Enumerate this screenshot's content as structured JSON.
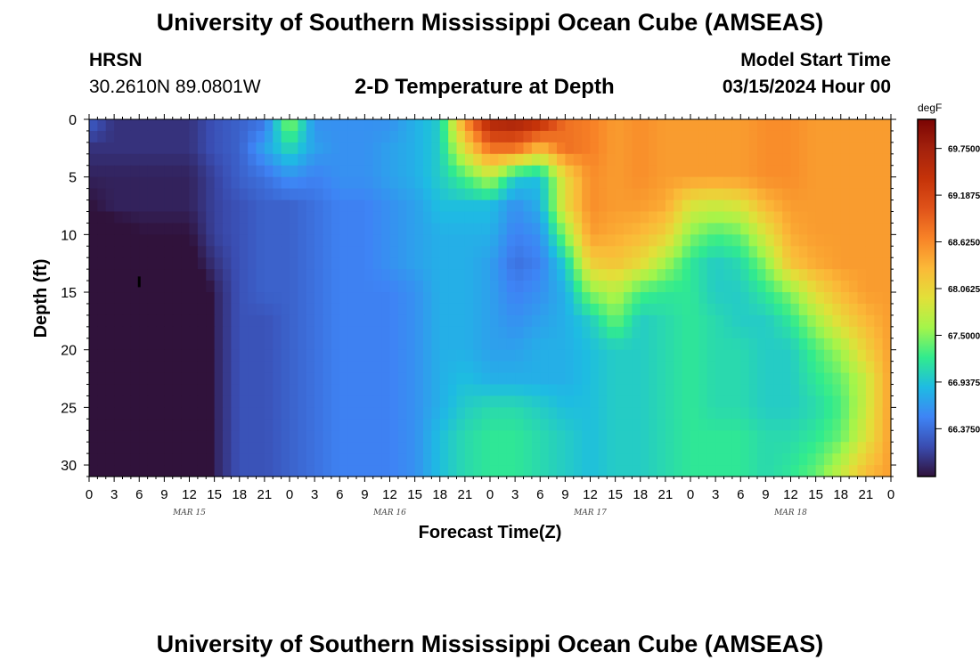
{
  "header": {
    "title": "University of Southern Mississippi Ocean Cube (AMSEAS)",
    "station": "HRSN",
    "coordinates": "30.2610N  89.0801W",
    "subtitle": "2-D Temperature at Depth",
    "model_start_label": "Model Start Time",
    "model_start_value": "03/15/2024 Hour 00"
  },
  "footer": {
    "title": "University of Southern Mississippi Ocean Cube (AMSEAS)"
  },
  "chart_data": {
    "type": "heatmap",
    "title": "2-D Temperature at Depth",
    "xlabel": "Forecast Time(Z)",
    "ylabel": "Depth (ft)",
    "x_hours": [
      0,
      3,
      6,
      9,
      12,
      15,
      18,
      21,
      24,
      27,
      30,
      33,
      36,
      39,
      42,
      45,
      48,
      51,
      54,
      57,
      60,
      63,
      66,
      69,
      72,
      75,
      78,
      81,
      84,
      87,
      90,
      93,
      96
    ],
    "x_tick_labels": [
      "0",
      "3",
      "6",
      "9",
      "12",
      "15",
      "18",
      "21",
      "0",
      "3",
      "6",
      "9",
      "12",
      "15",
      "18",
      "21",
      "0",
      "3",
      "6",
      "9",
      "12",
      "15",
      "18",
      "21",
      "0",
      "3",
      "6",
      "9",
      "12",
      "15",
      "18",
      "21",
      "0"
    ],
    "x_date_labels": [
      {
        "hour": 12,
        "label": "MAR 15"
      },
      {
        "hour": 36,
        "label": "MAR 16"
      },
      {
        "hour": 60,
        "label": "MAR 17"
      },
      {
        "hour": 84,
        "label": "MAR 18"
      }
    ],
    "xlim": [
      0,
      96
    ],
    "ylim": [
      0,
      31
    ],
    "y_reversed": true,
    "y_ticks": [
      0,
      5,
      10,
      15,
      20,
      25,
      30
    ],
    "y_tick_labels": [
      "0",
      "5",
      "10",
      "15",
      "20",
      "25",
      "30"
    ],
    "depths_ft": [
      0,
      2.5,
      5,
      7.5,
      10,
      12.5,
      15,
      17.5,
      20,
      22.5,
      25,
      27.5,
      31
    ],
    "values_degF": [
      [
        66.3,
        66.0,
        66.0,
        66.0,
        66.0,
        66.2,
        66.3,
        66.4,
        67.6,
        66.6,
        66.6,
        66.6,
        66.6,
        66.8,
        67.0,
        68.6,
        69.7,
        69.8,
        69.6,
        68.8,
        68.7,
        68.5,
        68.6,
        68.5,
        68.5,
        68.5,
        68.5,
        68.6,
        68.6,
        68.5,
        68.5,
        68.5,
        68.5
      ],
      [
        66.0,
        66.0,
        66.0,
        66.0,
        66.0,
        66.2,
        66.3,
        66.7,
        67.1,
        66.7,
        66.6,
        66.6,
        66.7,
        66.8,
        67.0,
        68.0,
        68.8,
        68.8,
        68.3,
        68.8,
        68.7,
        68.5,
        68.6,
        68.5,
        68.5,
        68.5,
        68.5,
        68.6,
        68.6,
        68.5,
        68.5,
        68.5,
        68.5
      ],
      [
        65.9,
        65.9,
        65.9,
        65.9,
        65.9,
        66.1,
        66.3,
        66.4,
        66.6,
        66.5,
        66.6,
        66.6,
        66.7,
        66.8,
        67.0,
        67.3,
        67.7,
        67.0,
        66.9,
        68.0,
        68.6,
        68.5,
        68.6,
        68.5,
        68.5,
        68.5,
        68.5,
        68.6,
        68.6,
        68.5,
        68.5,
        68.5,
        68.5
      ],
      [
        65.8,
        65.9,
        65.9,
        65.9,
        65.9,
        66.1,
        66.2,
        66.3,
        66.3,
        66.4,
        66.5,
        66.5,
        66.6,
        66.7,
        66.9,
        66.9,
        66.9,
        66.6,
        66.8,
        68.0,
        68.6,
        68.5,
        68.5,
        68.4,
        67.9,
        67.8,
        67.9,
        68.3,
        68.5,
        68.5,
        68.5,
        68.5,
        68.5
      ],
      [
        65.6,
        65.7,
        65.8,
        65.8,
        65.8,
        66.1,
        66.2,
        66.3,
        66.3,
        66.4,
        66.5,
        66.5,
        66.6,
        66.7,
        66.8,
        66.8,
        66.8,
        66.5,
        66.6,
        67.5,
        68.5,
        68.4,
        68.3,
        68.1,
        67.5,
        67.3,
        67.4,
        67.9,
        68.4,
        68.5,
        68.5,
        68.5,
        68.5
      ],
      [
        65.3,
        65.4,
        65.5,
        65.6,
        65.7,
        66.0,
        66.2,
        66.3,
        66.3,
        66.4,
        66.5,
        66.5,
        66.6,
        66.7,
        66.8,
        66.8,
        66.7,
        66.4,
        66.5,
        67.0,
        68.1,
        68.2,
        68.0,
        67.6,
        67.2,
        67.0,
        67.1,
        67.5,
        68.2,
        68.4,
        68.5,
        68.5,
        68.5
      ],
      [
        65.2,
        65.2,
        65.2,
        65.2,
        65.3,
        65.9,
        66.2,
        66.3,
        66.3,
        66.4,
        66.5,
        66.5,
        66.5,
        66.6,
        66.8,
        66.8,
        66.7,
        66.5,
        66.6,
        66.8,
        67.5,
        67.7,
        67.3,
        67.2,
        67.2,
        67.0,
        67.0,
        67.2,
        67.5,
        68.0,
        68.3,
        68.5,
        68.5
      ],
      [
        65.2,
        65.2,
        65.2,
        65.2,
        65.3,
        65.9,
        66.2,
        66.2,
        66.3,
        66.4,
        66.5,
        66.5,
        66.5,
        66.6,
        66.8,
        66.8,
        66.7,
        66.6,
        66.7,
        66.8,
        67.0,
        67.4,
        67.0,
        67.1,
        67.2,
        67.1,
        67.0,
        67.0,
        67.2,
        67.6,
        68.0,
        68.3,
        68.5
      ],
      [
        65.2,
        65.2,
        65.2,
        65.2,
        65.3,
        65.9,
        66.2,
        66.2,
        66.3,
        66.4,
        66.5,
        66.5,
        66.5,
        66.6,
        66.8,
        66.8,
        66.7,
        66.7,
        66.8,
        66.8,
        66.9,
        67.0,
        67.0,
        67.1,
        67.2,
        67.1,
        67.1,
        67.0,
        67.0,
        67.3,
        67.6,
        68.1,
        68.5
      ],
      [
        65.2,
        65.2,
        65.2,
        65.2,
        65.3,
        65.9,
        66.2,
        66.2,
        66.3,
        66.4,
        66.5,
        66.5,
        66.5,
        66.6,
        66.8,
        66.9,
        66.8,
        66.8,
        66.8,
        66.8,
        66.9,
        67.0,
        67.0,
        67.1,
        67.2,
        67.1,
        67.1,
        67.0,
        67.0,
        67.2,
        67.4,
        67.8,
        68.5
      ],
      [
        65.2,
        65.2,
        65.2,
        65.2,
        65.3,
        65.9,
        66.2,
        66.2,
        66.3,
        66.4,
        66.5,
        66.5,
        66.5,
        66.6,
        66.8,
        67.0,
        67.1,
        67.1,
        67.0,
        66.9,
        66.9,
        67.0,
        67.0,
        67.1,
        67.2,
        67.1,
        67.1,
        67.0,
        67.0,
        67.1,
        67.3,
        67.8,
        68.5
      ],
      [
        65.2,
        65.2,
        65.2,
        65.2,
        65.3,
        65.9,
        66.2,
        66.2,
        66.3,
        66.4,
        66.5,
        66.5,
        66.5,
        66.6,
        66.9,
        67.1,
        67.2,
        67.2,
        67.1,
        67.0,
        66.9,
        67.0,
        67.0,
        67.1,
        67.2,
        67.2,
        67.2,
        67.1,
        67.1,
        67.2,
        67.4,
        67.9,
        68.5
      ],
      [
        65.2,
        65.2,
        65.2,
        65.2,
        65.3,
        65.9,
        66.2,
        66.2,
        66.3,
        66.4,
        66.5,
        66.5,
        66.5,
        66.6,
        66.9,
        67.1,
        67.2,
        67.2,
        67.1,
        67.0,
        66.9,
        67.0,
        67.0,
        67.1,
        67.2,
        67.2,
        67.2,
        67.1,
        67.2,
        67.4,
        67.8,
        68.3,
        68.5
      ]
    ],
    "marker": {
      "hour": 6,
      "depth_ft": 14.1
    },
    "colorbar": {
      "unit": "degF",
      "vmin": 65.8,
      "vmax": 70.1,
      "ticks": [
        69.75,
        69.1875,
        68.625,
        68.0625,
        67.5,
        66.9375,
        66.375
      ],
      "tick_labels": [
        "69.7500",
        "69.1875",
        "68.6250",
        "68.0625",
        "67.5000",
        "66.9375",
        "66.3750"
      ],
      "colors": [
        "#30123b",
        "#3a4cb0",
        "#3e84f5",
        "#1ebbe3",
        "#31eb8e",
        "#a4f54a",
        "#e2e039",
        "#fbb938",
        "#f88327",
        "#e0531a",
        "#c53309",
        "#a4220d",
        "#7a0403"
      ]
    }
  }
}
